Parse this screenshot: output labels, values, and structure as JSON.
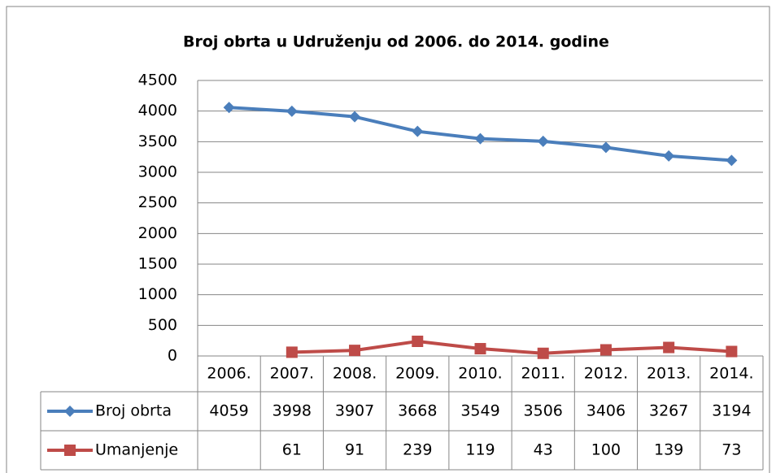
{
  "chart_data": {
    "type": "line",
    "title": "Broj obrta u Udruženju od 2006. do 2014. godine",
    "categories": [
      "2006.",
      "2007.",
      "2008.",
      "2009.",
      "2010.",
      "2011.",
      "2012.",
      "2013.",
      "2014."
    ],
    "series": [
      {
        "name": "Broj obrta",
        "color": "#4a7ebb",
        "marker": "diamond",
        "values": [
          4059,
          3998,
          3907,
          3668,
          3549,
          3506,
          3406,
          3267,
          3194
        ]
      },
      {
        "name": "Umanjenje",
        "color": "#be4b48",
        "marker": "square",
        "values": [
          null,
          61,
          91,
          239,
          119,
          43,
          100,
          139,
          73
        ]
      }
    ],
    "ylim": [
      0,
      4500
    ],
    "yticks": [
      0,
      500,
      1000,
      1500,
      2000,
      2500,
      3000,
      3500,
      4000,
      4500
    ],
    "grid": true,
    "data_table": true
  }
}
